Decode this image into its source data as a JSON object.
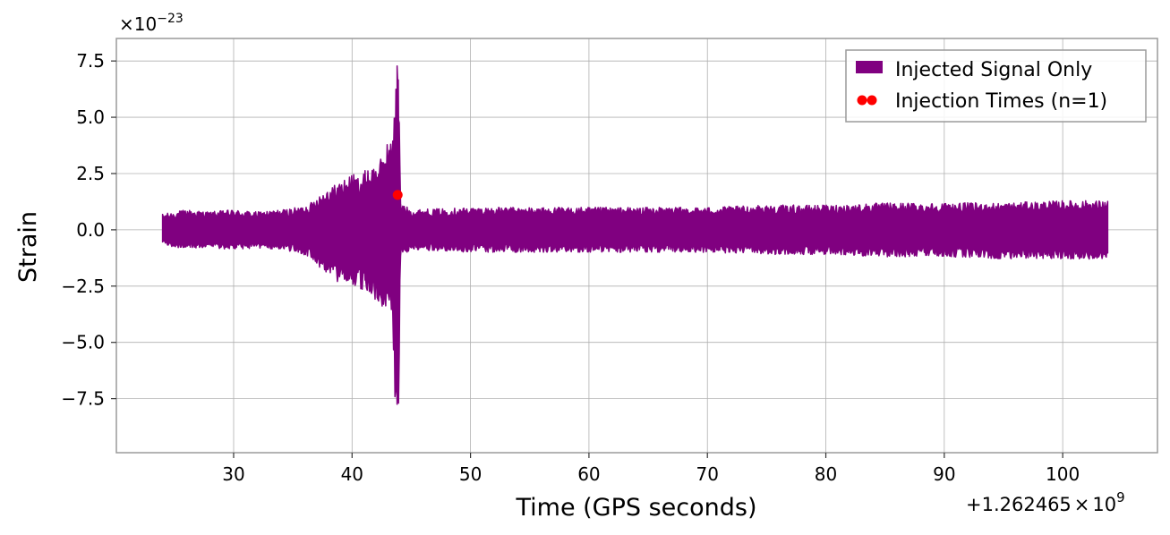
{
  "chart_data": {
    "type": "line",
    "xlabel": "Time (GPS seconds)",
    "ylabel": "Strain",
    "x_offset_label": "+1.262465×10^9",
    "x_offset_parts": {
      "prefix": "+1.262465",
      "times": "×",
      "base": "10",
      "exp": "9"
    },
    "y_scale_label": "×10^−23",
    "y_scale_parts": {
      "times": "×",
      "base": "10",
      "exp": "−23"
    },
    "xlim": [
      20.1,
      108
    ],
    "ylim": [
      -9.9,
      8.5
    ],
    "x_ticks": [
      30,
      40,
      50,
      60,
      70,
      80,
      90,
      100
    ],
    "x_tick_labels": [
      "30",
      "40",
      "50",
      "60",
      "70",
      "80",
      "90",
      "100"
    ],
    "y_ticks": [
      7.5,
      5.0,
      2.5,
      0.0,
      -2.5,
      -5.0,
      -7.5
    ],
    "y_tick_labels": [
      "7.5",
      "5.0",
      "2.5",
      "0.0",
      "−2.5",
      "−5.0",
      "−7.5"
    ],
    "grid": true,
    "legend_position": "top-right",
    "series": [
      {
        "name": "Injected Signal Only",
        "color": "#800080",
        "style": "filled-band",
        "envelope_upper": [
          [
            24.0,
            0.7
          ],
          [
            25.0,
            0.8
          ],
          [
            26.0,
            0.9
          ],
          [
            28.0,
            0.8
          ],
          [
            30.0,
            0.9
          ],
          [
            32.0,
            0.8
          ],
          [
            34.0,
            0.9
          ],
          [
            35.5,
            1.0
          ],
          [
            36.5,
            1.2
          ],
          [
            37.0,
            1.5
          ],
          [
            37.5,
            1.7
          ],
          [
            38.0,
            1.9
          ],
          [
            38.5,
            2.0
          ],
          [
            39.0,
            2.2
          ],
          [
            39.5,
            2.3
          ],
          [
            40.0,
            2.5
          ],
          [
            40.5,
            2.4
          ],
          [
            41.0,
            2.6
          ],
          [
            41.5,
            2.8
          ],
          [
            42.0,
            2.9
          ],
          [
            42.5,
            3.2
          ],
          [
            43.0,
            4.0
          ],
          [
            43.4,
            3.8
          ],
          [
            43.7,
            7.6
          ],
          [
            43.9,
            7.7
          ],
          [
            44.1,
            1.2
          ],
          [
            45.0,
            0.9
          ],
          [
            50.0,
            1.0
          ],
          [
            55.0,
            1.0
          ],
          [
            60.0,
            1.0
          ],
          [
            65.0,
            1.0
          ],
          [
            70.0,
            1.0
          ],
          [
            75.0,
            1.1
          ],
          [
            80.0,
            1.1
          ],
          [
            85.0,
            1.2
          ],
          [
            90.0,
            1.2
          ],
          [
            95.0,
            1.2
          ],
          [
            100.0,
            1.3
          ],
          [
            103.8,
            1.3
          ]
        ],
        "envelope_lower": [
          [
            24.0,
            -0.6
          ],
          [
            25.0,
            -0.8
          ],
          [
            26.0,
            -0.8
          ],
          [
            28.0,
            -0.8
          ],
          [
            30.0,
            -0.9
          ],
          [
            32.0,
            -0.8
          ],
          [
            34.0,
            -0.9
          ],
          [
            35.5,
            -1.0
          ],
          [
            36.5,
            -1.3
          ],
          [
            37.0,
            -1.6
          ],
          [
            37.5,
            -1.8
          ],
          [
            38.0,
            -2.0
          ],
          [
            38.5,
            -2.2
          ],
          [
            39.0,
            -2.4
          ],
          [
            39.5,
            -2.4
          ],
          [
            40.0,
            -2.5
          ],
          [
            40.5,
            -2.6
          ],
          [
            41.0,
            -2.7
          ],
          [
            41.5,
            -3.0
          ],
          [
            42.0,
            -3.1
          ],
          [
            42.5,
            -3.4
          ],
          [
            43.0,
            -3.8
          ],
          [
            43.4,
            -3.9
          ],
          [
            43.7,
            -8.9
          ],
          [
            43.9,
            -9.0
          ],
          [
            44.1,
            -1.2
          ],
          [
            45.0,
            -0.9
          ],
          [
            50.0,
            -1.0
          ],
          [
            55.0,
            -1.0
          ],
          [
            60.0,
            -1.0
          ],
          [
            65.0,
            -1.0
          ],
          [
            70.0,
            -1.0
          ],
          [
            75.0,
            -1.1
          ],
          [
            80.0,
            -1.1
          ],
          [
            85.0,
            -1.2
          ],
          [
            90.0,
            -1.2
          ],
          [
            95.0,
            -1.3
          ],
          [
            100.0,
            -1.3
          ],
          [
            103.8,
            -1.3
          ]
        ]
      },
      {
        "name": "Injection Times (n=1)",
        "color": "#ff0000",
        "style": "scatter",
        "points": [
          [
            43.85,
            1.55
          ]
        ]
      }
    ]
  }
}
